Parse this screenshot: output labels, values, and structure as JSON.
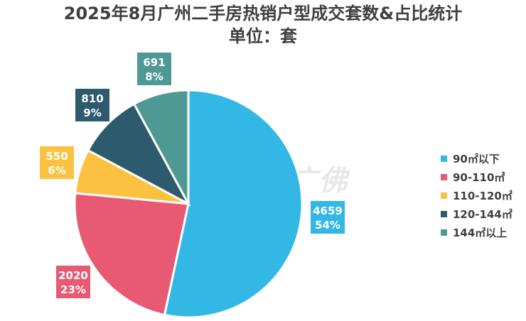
{
  "chart_data": {
    "type": "pie",
    "title": "2025年8月广州二手房热销户型成交套数&占比统计",
    "subtitle": "单位：套",
    "series": [
      {
        "name": "90㎡以下",
        "value": 4659,
        "percent": "54%",
        "color": "#33b8e5"
      },
      {
        "name": "90-110㎡",
        "value": 2020,
        "percent": "23%",
        "color": "#e85a74"
      },
      {
        "name": "110-120㎡",
        "value": 550,
        "percent": "6%",
        "color": "#fac240"
      },
      {
        "name": "120-144㎡",
        "value": 810,
        "percent": "9%",
        "color": "#2e5a6e"
      },
      {
        "name": "144㎡以上",
        "value": 691,
        "percent": "8%",
        "color": "#4e9994"
      }
    ],
    "legend_position": "right"
  },
  "watermark": "CRIC 克而瑞·广佛"
}
